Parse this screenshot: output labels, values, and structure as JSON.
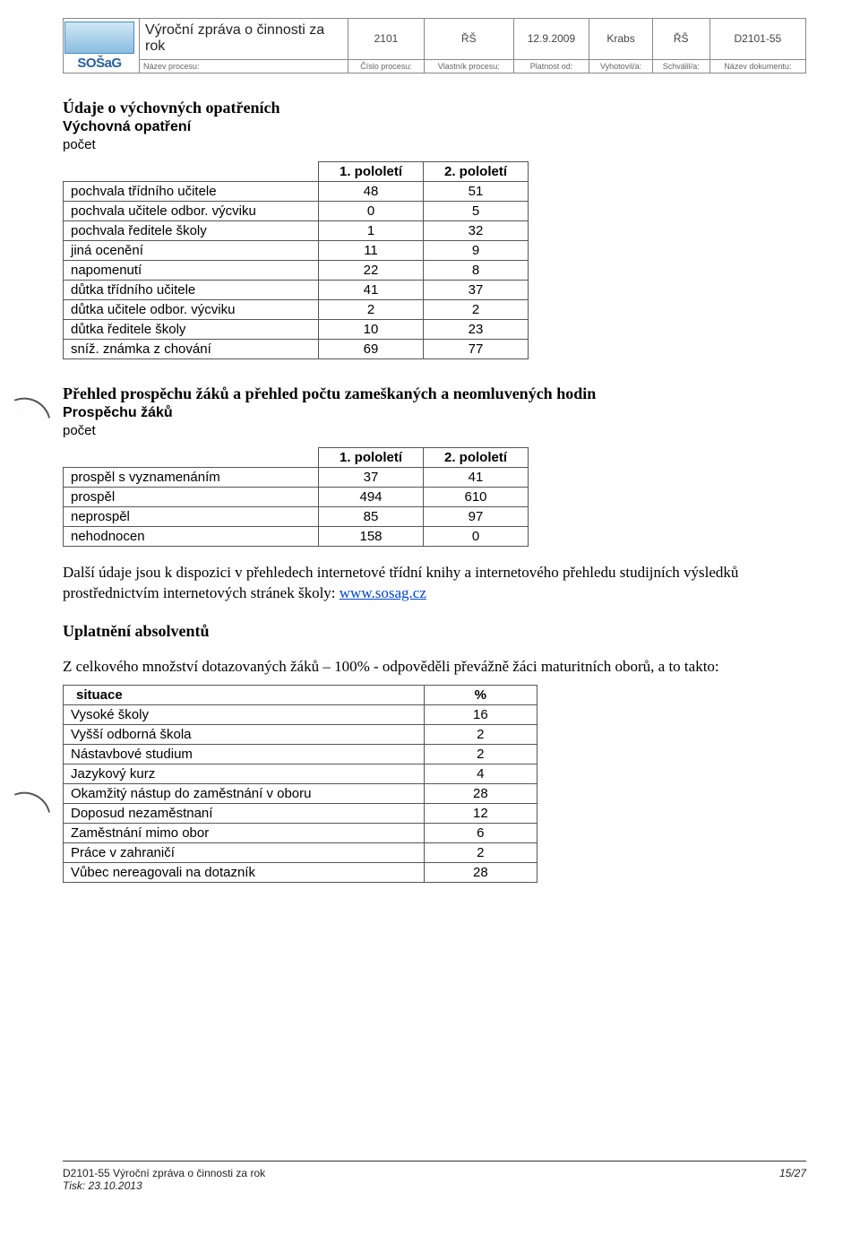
{
  "header": {
    "logo_top": "",
    "logo_text": "SOŠaG",
    "title": "Výroční zpráva o čin­nosti za rok",
    "cells": [
      "2101",
      "ŘŠ",
      "12.9.2009",
      "Krabs",
      "ŘŠ",
      "D2101-55"
    ],
    "labels_left": "Název procesu:",
    "labels": [
      "Číslo procesu:",
      "Vlastník procesu:",
      "Platnost od:",
      "Vyhotovil/a:",
      "Schválil/a:",
      "Název doku­mentu:"
    ]
  },
  "section1": {
    "heading": "Údaje o výchovných opatřeních",
    "sub": "Výchovná opatření",
    "count_label": "počet",
    "table": {
      "headers": [
        "",
        "1. pololetí",
        "2. pololetí"
      ],
      "rows": [
        [
          "pochvala třídního učitele",
          "48",
          "51"
        ],
        [
          "pochvala učitele odbor. výcvi­ku",
          "0",
          "5"
        ],
        [
          "pochvala ředitele školy",
          "1",
          "32"
        ],
        [
          "jiná ocenění",
          "11",
          "9"
        ],
        [
          "napomenutí",
          "22",
          "8"
        ],
        [
          "důtka třídního učitele",
          "41",
          "37"
        ],
        [
          "důtka učitele odbor. výcviku",
          "2",
          "2"
        ],
        [
          "důtka ředitele školy",
          "10",
          "23"
        ],
        [
          "sníž. známka  z chování",
          "69",
          "77"
        ]
      ]
    }
  },
  "section2": {
    "heading": "Přehled prospěchu žáků a přehled počtu zameškaných a neomluvených hodin",
    "sub": "Prospěchu žáků",
    "count_label": "počet",
    "table": {
      "headers": [
        "",
        "1. pololetí",
        "2. pololetí"
      ],
      "rows": [
        [
          "prospěl s vyznamenáním",
          "37",
          "41"
        ],
        [
          "prospěl",
          "494",
          "610"
        ],
        [
          "neprospěl",
          "85",
          "97"
        ],
        [
          "nehodnocen",
          "158",
          "0"
        ]
      ]
    }
  },
  "paragraph1_a": "Další údaje jsou k dispozici v přehledech internetové třídní knihy a internetového přehledu studijních výsledků prostřednictvím internetových stránek školy: ",
  "link_text": "www.sosag.cz",
  "section3_heading": "Uplatnění absolventů",
  "paragraph2": "Z celkového množství dotazovaných žáků – 100% - odpověděli převážně žáci maturitních oborů, a to takto:",
  "section3_table": {
    "headers": [
      "situace",
      "%"
    ],
    "rows": [
      [
        "Vysoké školy",
        "16"
      ],
      [
        "Vyšší odborná škola",
        "2"
      ],
      [
        "Nástavbové studium",
        "2"
      ],
      [
        "Jazykový kurz",
        "4"
      ],
      [
        "Okamžitý nástup do zaměstnání v oboru",
        "28"
      ],
      [
        "Doposud nezaměstnaní",
        "12"
      ],
      [
        "Zaměstnání mimo obor",
        "6"
      ],
      [
        "Práce v zahraničí",
        "2"
      ],
      [
        "Vůbec nereagovali na dotazník",
        "28"
      ]
    ]
  },
  "footer": {
    "left1": "D2101-55 Výroční zpráva o činnosti za rok",
    "left2": "Tisk: 23.10.2013",
    "right": "15/27"
  }
}
